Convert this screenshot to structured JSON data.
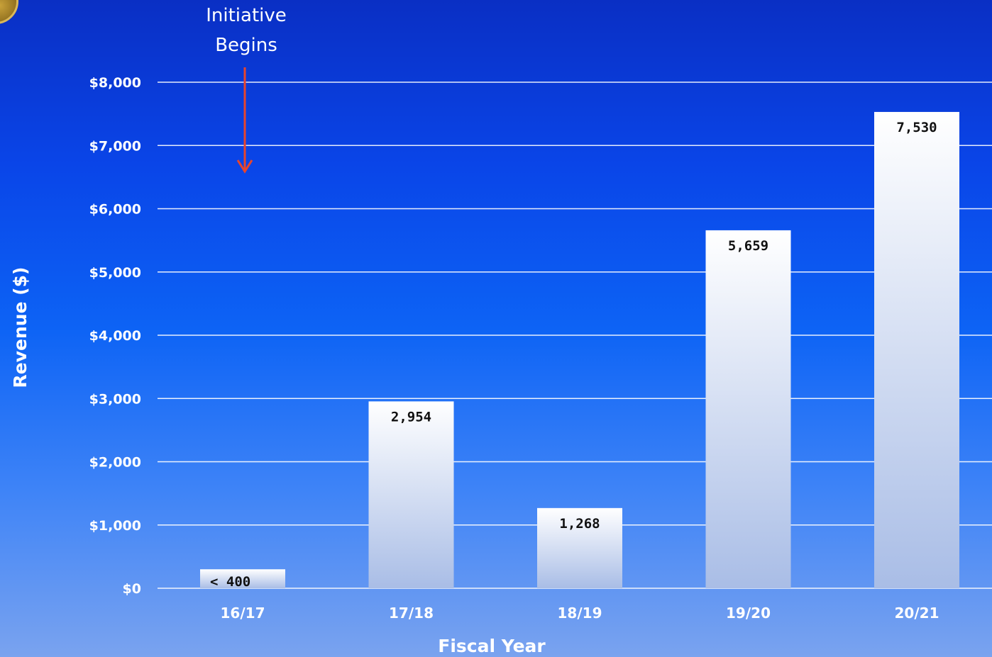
{
  "chart_data": {
    "type": "bar",
    "categories": [
      "16/17",
      "17/18",
      "18/19",
      "19/20",
      "20/21"
    ],
    "values": [
      300,
      2954,
      1268,
      5659,
      7530
    ],
    "data_labels": [
      "< 400",
      "2,954",
      "1,268",
      "5,659",
      "7,530"
    ],
    "title": "",
    "xlabel": "Fiscal Year",
    "ylabel": "Revenue ($)",
    "ylim": [
      0,
      8000
    ],
    "yticks": [
      0,
      1000,
      2000,
      3000,
      4000,
      5000,
      6000,
      7000,
      8000
    ],
    "ytick_labels": [
      "$0",
      "$1,000",
      "$2,000",
      "$3,000",
      "$4,000",
      "$5,000",
      "$6,000",
      "$7,000",
      "$8,000"
    ],
    "grid": true,
    "legend": "none",
    "bar_color_top": "#ffffff",
    "bar_color_bottom": "#a9bde6",
    "annotation": {
      "lines": [
        "Initiative",
        "Begins"
      ],
      "target_category": "16/17",
      "arrow_color": "#e8452c"
    }
  }
}
